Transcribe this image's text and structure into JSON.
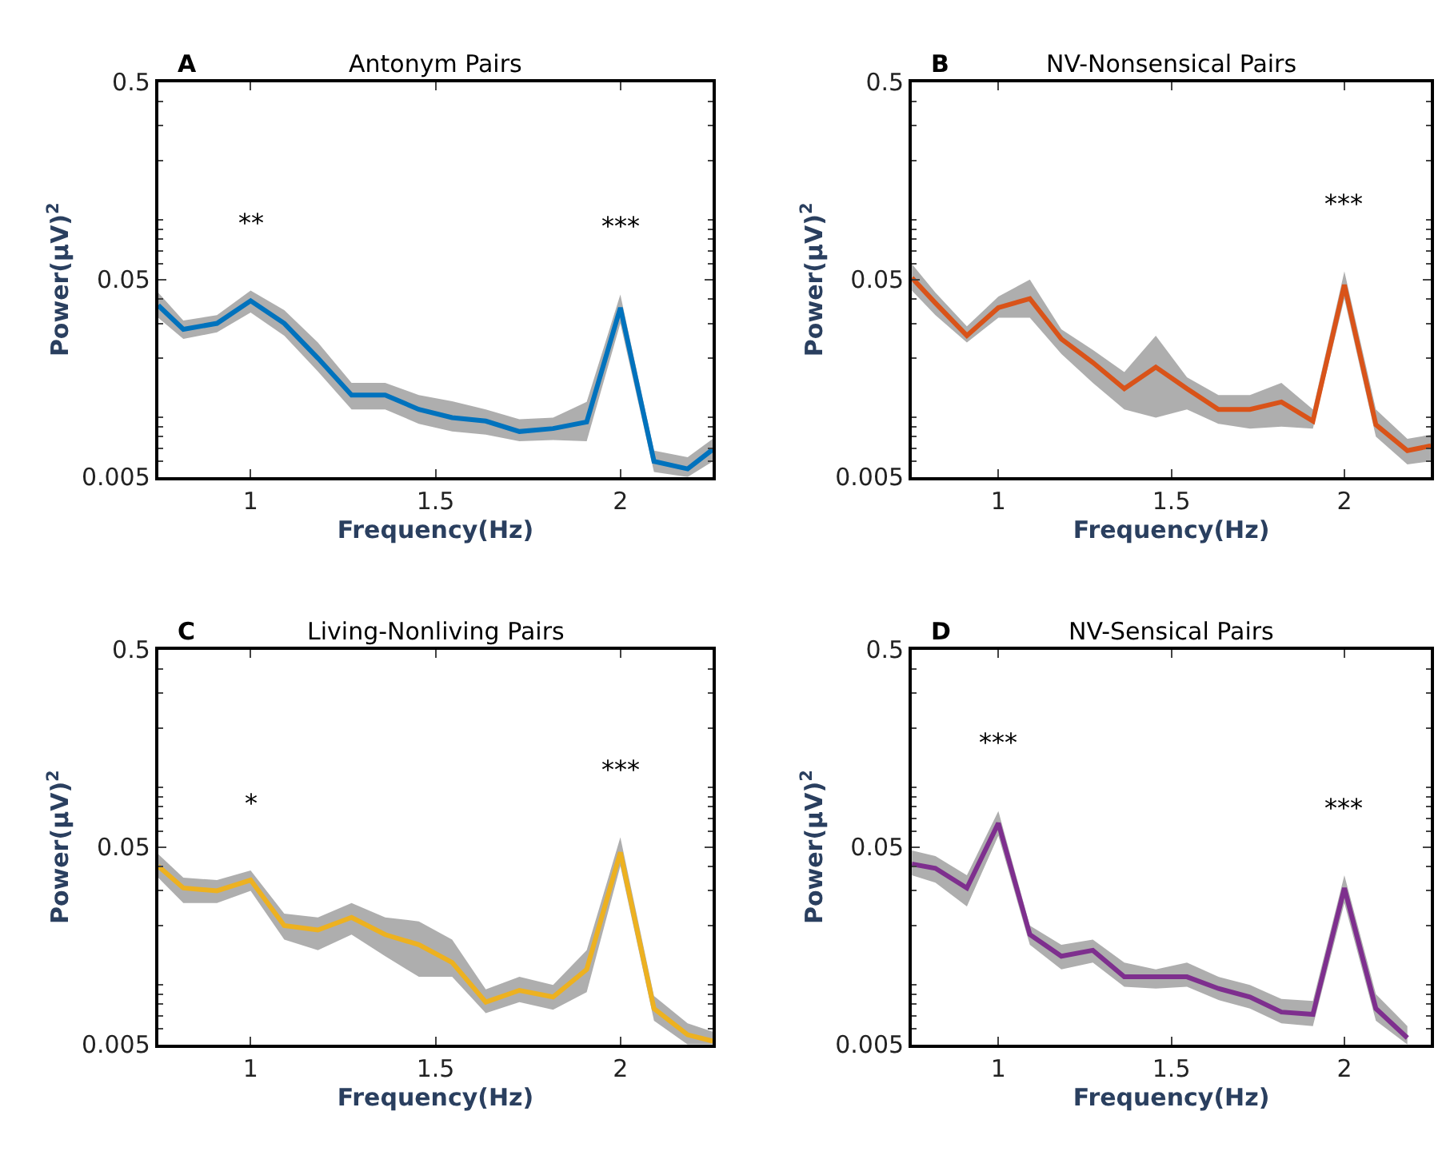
{
  "chart_data": [
    {
      "type": "line",
      "title": "Antonym Pairs",
      "xlabel": "Frequency(Hz)",
      "ylabel": "Power(μV)$^{2}$",
      "x": [
        0.75,
        0.818,
        0.909,
        1,
        1.091,
        1.182,
        1.273,
        1.364,
        1.455,
        1.545,
        1.636,
        1.727,
        1.818,
        1.909,
        2,
        2.091,
        2.182,
        2.25
      ],
      "series": [
        {
          "color": "#0072bd",
          "values": [
            0.037,
            0.028,
            0.03,
            0.039,
            0.03,
            0.02,
            0.013,
            0.013,
            0.011,
            0.01,
            0.0096,
            0.0085,
            0.0088,
            0.0095,
            0.036,
            0.006,
            0.0055,
            0.0069
          ],
          "upper": [
            0.043,
            0.031,
            0.033,
            0.044,
            0.035,
            0.024,
            0.015,
            0.015,
            0.013,
            0.0121,
            0.011,
            0.0098,
            0.01,
            0.012,
            0.042,
            0.0068,
            0.0063,
            0.0078
          ],
          "lower": [
            0.032,
            0.025,
            0.027,
            0.034,
            0.026,
            0.0171,
            0.011,
            0.011,
            0.0093,
            0.0085,
            0.0082,
            0.0076,
            0.0077,
            0.0076,
            0.03,
            0.0053,
            0.005,
            0.006
          ]
        }
      ],
      "xlim": [
        0.75,
        2.25
      ],
      "xticks": [
        1,
        1.5,
        2
      ],
      "ylim": [
        0.005,
        0.5
      ],
      "yticks": [
        0.005,
        0.05,
        0.5
      ],
      "log": true,
      "marker": "none",
      "line_style": "solid",
      "annotations": [
        "A",
        "**",
        "***"
      ]
    },
    {
      "type": "line",
      "title": "NV-Nonsensical Pairs",
      "xlabel": "Frequency(Hz)",
      "ylabel": "Power(μV)$^{2}$",
      "x": [
        0.75,
        0.818,
        0.909,
        1,
        1.091,
        1.182,
        1.273,
        1.364,
        1.455,
        1.545,
        1.636,
        1.727,
        1.818,
        1.909,
        2,
        2.091,
        2.182,
        2.25
      ],
      "series": [
        {
          "color": "#d95319",
          "values": [
            0.051,
            0.038,
            0.026,
            0.036,
            0.04,
            0.025,
            0.019,
            0.014,
            0.018,
            0.014,
            0.011,
            0.011,
            0.012,
            0.0096,
            0.047,
            0.0092,
            0.0068,
            0.0072
          ],
          "upper": [
            0.06,
            0.043,
            0.029,
            0.041,
            0.05,
            0.028,
            0.022,
            0.017,
            0.026,
            0.016,
            0.013,
            0.013,
            0.015,
            0.011,
            0.055,
            0.011,
            0.0078,
            0.0082
          ],
          "lower": [
            0.044,
            0.033,
            0.024,
            0.032,
            0.032,
            0.021,
            0.015,
            0.011,
            0.01,
            0.011,
            0.0093,
            0.0088,
            0.009,
            0.0088,
            0.04,
            0.008,
            0.0058,
            0.006
          ]
        }
      ],
      "xlim": [
        0.75,
        2.25
      ],
      "xticks": [
        1,
        1.5,
        2
      ],
      "ylim": [
        0.005,
        0.5
      ],
      "yticks": [
        0.005,
        0.05,
        0.5
      ],
      "log": true,
      "marker": "none",
      "line_style": "solid",
      "annotations": [
        "B",
        "***"
      ]
    },
    {
      "type": "line",
      "title": "Living-Nonliving Pairs",
      "xlabel": "Frequency(Hz)",
      "ylabel": "Power(μV)$^{2}$",
      "x": [
        0.75,
        0.818,
        0.909,
        1,
        1.091,
        1.182,
        1.273,
        1.364,
        1.455,
        1.545,
        1.636,
        1.727,
        1.818,
        1.909,
        2,
        2.091,
        2.182,
        2.25
      ],
      "series": [
        {
          "color": "#edb120",
          "values": [
            0.04,
            0.031,
            0.03,
            0.034,
            0.02,
            0.019,
            0.022,
            0.018,
            0.016,
            0.013,
            0.0082,
            0.0094,
            0.0087,
            0.012,
            0.047,
            0.0076,
            0.0056,
            0.0052
          ],
          "upper": [
            0.046,
            0.035,
            0.034,
            0.038,
            0.023,
            0.022,
            0.026,
            0.022,
            0.021,
            0.017,
            0.0095,
            0.011,
            0.01,
            0.015,
            0.056,
            0.0088,
            0.0064,
            0.0058
          ],
          "lower": [
            0.035,
            0.026,
            0.026,
            0.03,
            0.017,
            0.015,
            0.018,
            0.014,
            0.011,
            0.011,
            0.0072,
            0.0082,
            0.0075,
            0.0092,
            0.04,
            0.0066,
            0.005,
            0.005
          ]
        }
      ],
      "xlim": [
        0.75,
        2.25
      ],
      "xticks": [
        1,
        1.5,
        2
      ],
      "ylim": [
        0.005,
        0.5
      ],
      "yticks": [
        0.005,
        0.05,
        0.5
      ],
      "log": true,
      "marker": "none",
      "line_style": "solid",
      "annotations": [
        "C",
        "*",
        "***"
      ]
    },
    {
      "type": "line",
      "title": "NV-Sensical Pairs",
      "xlabel": "Frequency(Hz)",
      "ylabel": "Power(μV)$^{2}$",
      "series": [
        {
          "color": "#7e2f8e",
          "x": [
            0.75,
            0.818,
            0.909,
            1,
            1.091,
            1.182,
            1.273,
            1.364,
            1.455,
            1.545,
            1.636,
            1.727,
            1.818,
            1.909,
            2,
            2.091,
            2.182
          ],
          "values": [
            0.041,
            0.039,
            0.031,
            0.066,
            0.018,
            0.014,
            0.015,
            0.011,
            0.011,
            0.011,
            0.0096,
            0.0087,
            0.0073,
            0.0071,
            0.031,
            0.0076,
            0.0054
          ],
          "upper": [
            0.048,
            0.045,
            0.036,
            0.076,
            0.02,
            0.016,
            0.017,
            0.013,
            0.012,
            0.013,
            0.011,
            0.01,
            0.0085,
            0.0083,
            0.036,
            0.009,
            0.0062
          ],
          "lower": [
            0.036,
            0.033,
            0.025,
            0.057,
            0.016,
            0.012,
            0.013,
            0.0098,
            0.0096,
            0.0098,
            0.0084,
            0.0076,
            0.0064,
            0.0062,
            0.026,
            0.0066,
            0.005
          ]
        }
      ],
      "xlim": [
        0.75,
        2.25
      ],
      "xticks": [
        1,
        1.5,
        2
      ],
      "ylim": [
        0.005,
        0.5
      ],
      "yticks": [
        0.005,
        0.05,
        0.5
      ],
      "log": true,
      "marker": "none",
      "line_style": "solid",
      "annotations": [
        "D",
        "***",
        "***"
      ]
    }
  ]
}
